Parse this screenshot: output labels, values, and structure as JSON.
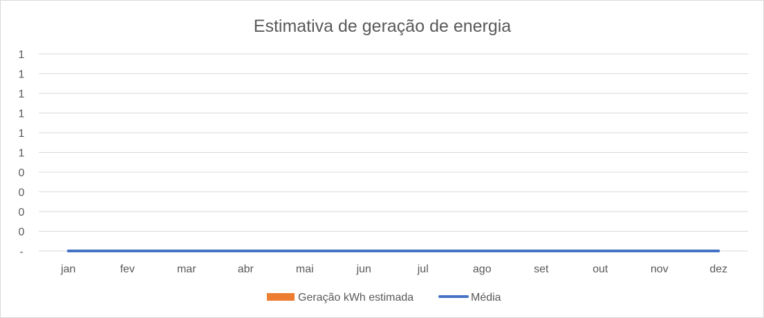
{
  "chart_data": {
    "type": "bar",
    "title": "Estimativa de geração de energia",
    "xlabel": "",
    "ylabel": "",
    "categories": [
      "jan",
      "fev",
      "mar",
      "abr",
      "mai",
      "jun",
      "jul",
      "ago",
      "set",
      "out",
      "nov",
      "dez"
    ],
    "y_tick_labels": [
      "-",
      "0",
      "0",
      "0",
      "0",
      "1",
      "1",
      "1",
      "1",
      "1",
      "1"
    ],
    "ylim": [
      0,
      1
    ],
    "grid": true,
    "legend_position": "bottom",
    "series": [
      {
        "name": "Geração kWh estimada",
        "type": "bar",
        "color": "#ED7D31",
        "values": [
          0,
          0,
          0,
          0,
          0,
          0,
          0,
          0,
          0,
          0,
          0,
          0
        ]
      },
      {
        "name": "Média",
        "type": "line",
        "color": "#4472C4",
        "values": [
          0,
          0,
          0,
          0,
          0,
          0,
          0,
          0,
          0,
          0,
          0,
          0
        ]
      }
    ]
  }
}
